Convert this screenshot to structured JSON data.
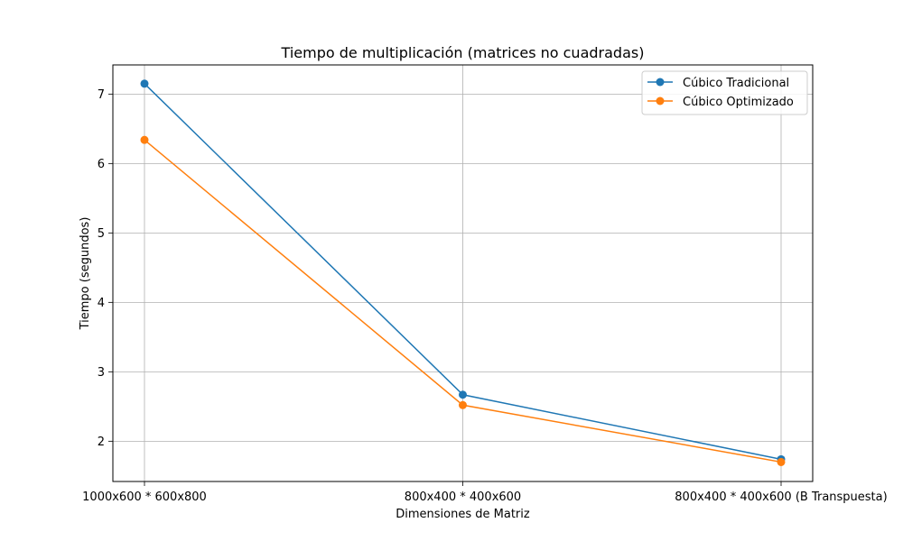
{
  "chart_data": {
    "type": "line",
    "title": "Tiempo de multiplicación (matrices no cuadradas)",
    "xlabel": "Dimensiones de Matriz",
    "ylabel": "Tiempo (segundos)",
    "categories": [
      "1000x600 * 600x800",
      "800x400 * 400x600",
      "800x400 * 400x600 (B Transpuesta)"
    ],
    "yticks": [
      2,
      3,
      4,
      5,
      6,
      7
    ],
    "ytick_labels": [
      "2",
      "3",
      "4",
      "5",
      "6",
      "7"
    ],
    "ylim": [
      1.42,
      7.42
    ],
    "grid": true,
    "legend_position": "top-right",
    "series": [
      {
        "name": "Cúbico Tradicional",
        "color": "#1f77b4",
        "marker": "circle",
        "values": [
          7.15,
          2.67,
          1.74
        ]
      },
      {
        "name": "Cúbico Optimizado",
        "color": "#ff7f0e",
        "marker": "circle",
        "values": [
          6.34,
          2.52,
          1.7
        ]
      }
    ]
  }
}
